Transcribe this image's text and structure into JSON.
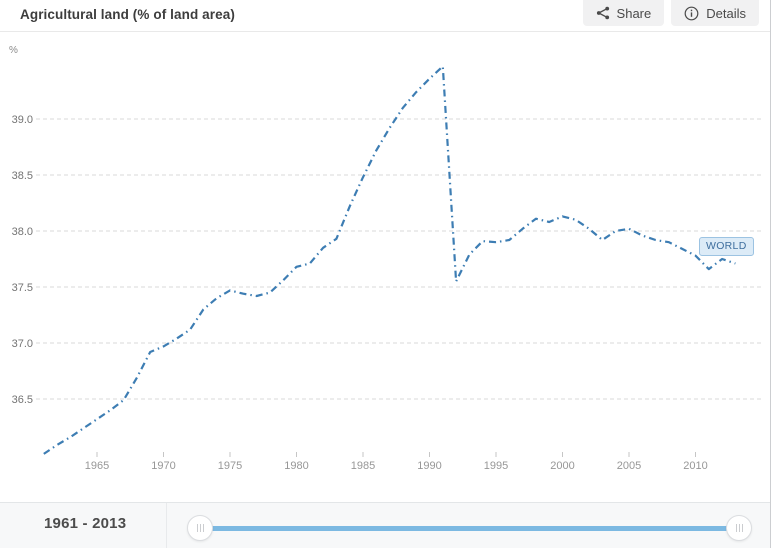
{
  "header": {
    "title": "Agricultural land (% of land area)",
    "share_label": "Share",
    "details_label": "Details"
  },
  "bottom": {
    "range_label": "1961 - 2013"
  },
  "slider": {
    "track_color": "#7cb9e2"
  },
  "series_flag": {
    "text_color": "#3e6e9e",
    "bg_color": "#dcebf7",
    "border_color": "#9cc3e2"
  },
  "chart_data": {
    "type": "line",
    "title": "Agricultural land (% of land area)",
    "unit": "%",
    "xlabel": "",
    "ylabel": "%",
    "grid": true,
    "x_ticks": [
      1965,
      1970,
      1975,
      1980,
      1985,
      1990,
      1995,
      2000,
      2005,
      2010
    ],
    "y_tick_labels": [
      "36.5",
      "37.0",
      "37.5",
      "38.0",
      "38.5",
      "39.0"
    ],
    "xlim": [
      1961,
      2013
    ],
    "ylim": [
      36.0,
      39.5
    ],
    "series": [
      {
        "name": "WORLD",
        "color": "#3d7db3",
        "line_style": "dash-dot",
        "years": [
          1961,
          1962,
          1963,
          1964,
          1965,
          1966,
          1967,
          1968,
          1969,
          1970,
          1971,
          1972,
          1973,
          1974,
          1975,
          1976,
          1977,
          1978,
          1979,
          1980,
          1981,
          1982,
          1983,
          1984,
          1985,
          1986,
          1987,
          1988,
          1989,
          1990,
          1991,
          1992,
          1993,
          1994,
          1995,
          1996,
          1997,
          1998,
          1999,
          2000,
          2001,
          2002,
          2003,
          2004,
          2005,
          2006,
          2007,
          2008,
          2009,
          2010,
          2011,
          2012,
          2013
        ],
        "values": [
          36.01,
          36.09,
          36.16,
          36.24,
          36.32,
          36.4,
          36.49,
          36.69,
          36.92,
          36.97,
          37.04,
          37.12,
          37.3,
          37.4,
          37.47,
          37.44,
          37.42,
          37.45,
          37.56,
          37.68,
          37.71,
          37.85,
          37.93,
          38.22,
          38.48,
          38.72,
          38.92,
          39.1,
          39.24,
          39.36,
          39.47,
          37.55,
          37.79,
          37.91,
          37.9,
          37.92,
          38.02,
          38.11,
          38.08,
          38.13,
          38.1,
          38.02,
          37.92,
          38.0,
          38.02,
          37.96,
          37.92,
          37.9,
          37.84,
          37.78,
          37.66,
          37.75,
          37.71
        ]
      }
    ]
  }
}
